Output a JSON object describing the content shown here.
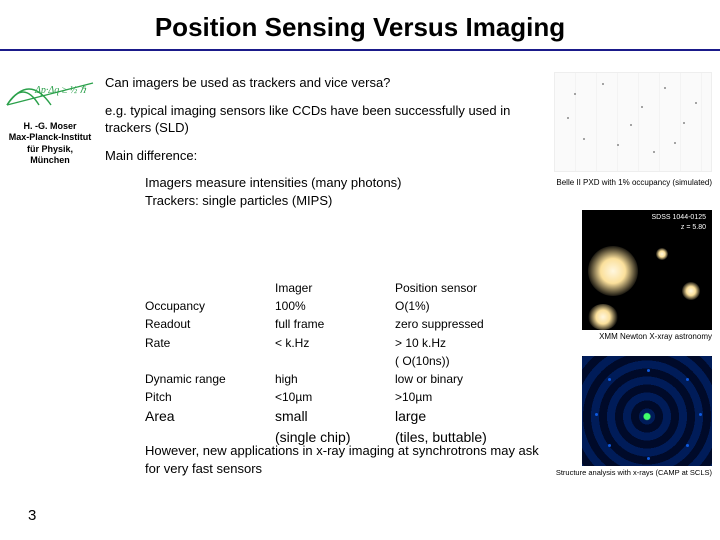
{
  "title": "Position Sensing Versus Imaging",
  "page_number": "3",
  "author": {
    "name": "H. -G. Moser",
    "inst1": "Max-Planck-Institut",
    "inst2": "für Physik,",
    "inst3": "München"
  },
  "text": {
    "q1": "Can imagers be used as trackers and vice versa?",
    "p1": "e.g. typical imaging sensors like CCDs have been successfully used in trackers (SLD)",
    "p2": "Main difference:",
    "d1": "Imagers measure intensities (many photons)",
    "d2": "Trackers: single particles (MIPS)",
    "closing": "However, new applications in x-ray imaging at synchrotrons may ask for very fast sensors"
  },
  "table": {
    "hdr_imager": "Imager",
    "hdr_pos": "Position sensor",
    "rows": [
      {
        "l": "Occupancy",
        "a": "100%",
        "b": "O(1%)"
      },
      {
        "l": "Readout",
        "a": "full frame",
        "b": "zero suppressed"
      },
      {
        "l": "Rate",
        "a": "< k.Hz",
        "b": "> 10 k.Hz"
      },
      {
        "l": "",
        "a": "",
        "b": "( O(10ns))"
      },
      {
        "l": "Dynamic range",
        "a": "high",
        "b": "low  or binary"
      },
      {
        "l": "Pitch",
        "a": "<10µm",
        "b": ">10µm"
      },
      {
        "l": "Area",
        "a": "small",
        "b": "large"
      },
      {
        "l": "",
        "a": "(single chip)",
        "b": "(tiles, buttable)"
      }
    ]
  },
  "captions": {
    "c1": "Belle II PXD with 1% occupancy (simulated)",
    "c2": "XMM Newton X-xray astronomy",
    "c3": "Structure analysis with x-rays (CAMP at SCLS)"
  },
  "fig2": {
    "label1": "SDSS 1044-0125",
    "label2": "z = 5.80"
  }
}
